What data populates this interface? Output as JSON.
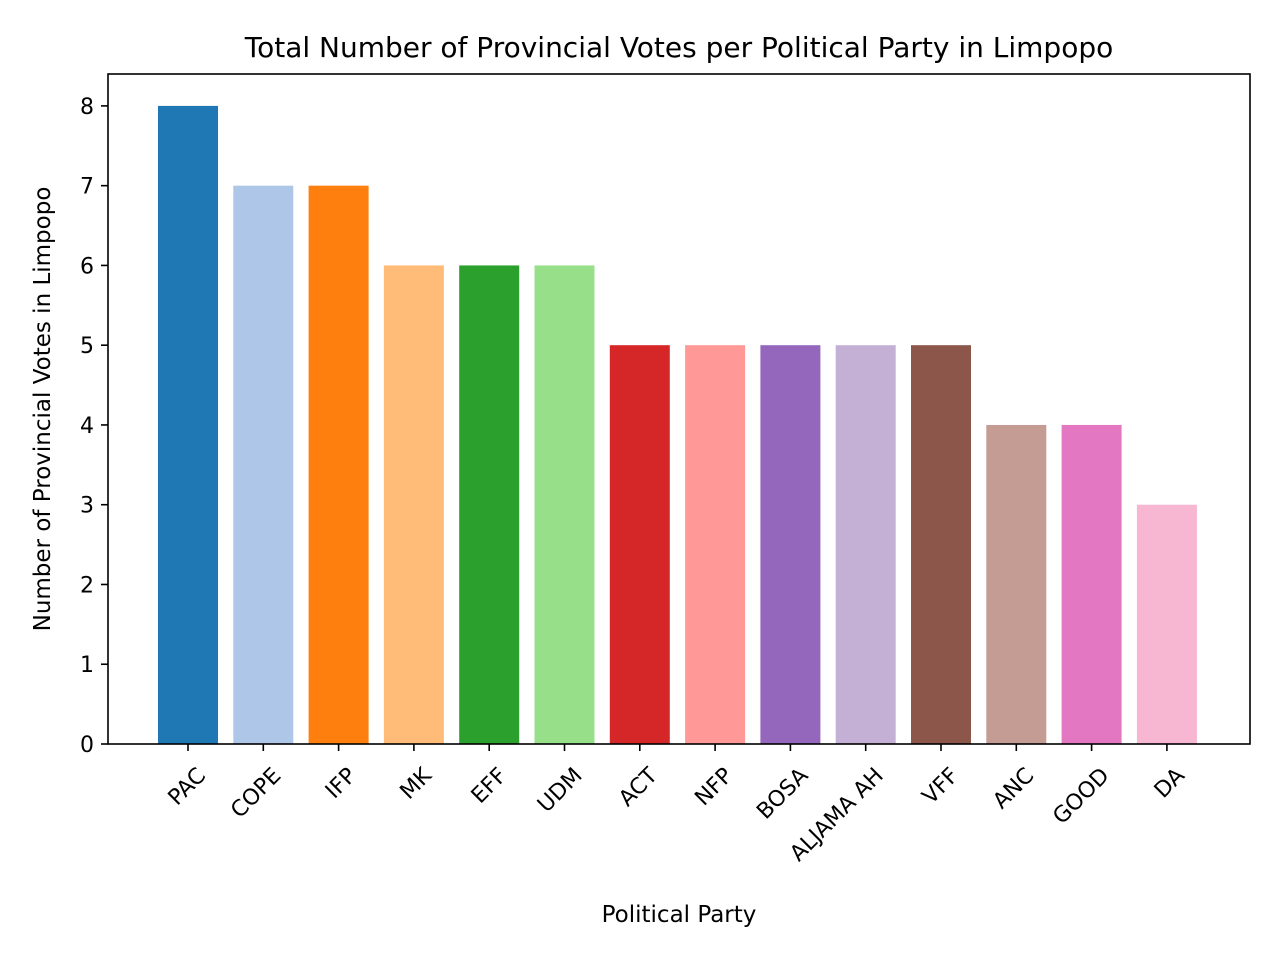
{
  "chart_data": {
    "type": "bar",
    "title": "Total Number of Provincial Votes per Political Party in Limpopo",
    "xlabel": "Political Party",
    "ylabel": "Number of Provincial Votes in Limpopo",
    "categories": [
      "PAC",
      "COPE",
      "IFP",
      "MK",
      "EFF",
      "UDM",
      "ACT",
      "NFP",
      "BOSA",
      "ALJAMA AH",
      "VFF",
      "ANC",
      "GOOD",
      "DA"
    ],
    "values": [
      8,
      7,
      7,
      6,
      6,
      6,
      5,
      5,
      5,
      5,
      5,
      4,
      4,
      3
    ],
    "colors": [
      "#1f77b4",
      "#aec7e8",
      "#ff7f0e",
      "#ffbb78",
      "#2ca02c",
      "#98df8a",
      "#d62728",
      "#ff9896",
      "#9467bd",
      "#c5b0d5",
      "#8c564b",
      "#c49c94",
      "#e377c2",
      "#f7b6d2"
    ],
    "ylim": [
      0,
      8.4
    ],
    "yticks": [
      0,
      1,
      2,
      3,
      4,
      5,
      6,
      7,
      8
    ],
    "grid": false,
    "xtick_rotation": 45
  }
}
